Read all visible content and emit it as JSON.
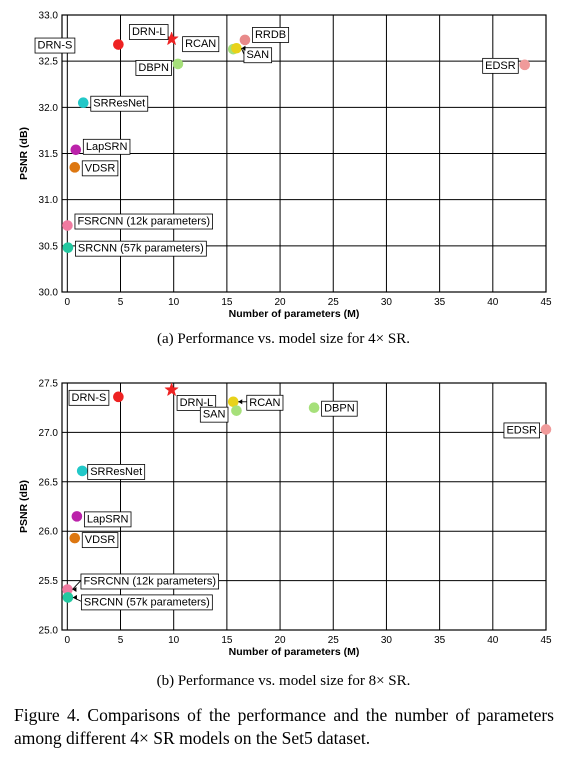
{
  "chart_data": [
    {
      "type": "scatter",
      "xlabel": "Number of parameters (M)",
      "ylabel": "PSNR (dB)",
      "xlim": [
        -0.5,
        45
      ],
      "ylim": [
        30.0,
        33.0
      ],
      "x_ticks": [
        "0",
        "5",
        "10",
        "15",
        "20",
        "25",
        "30",
        "35",
        "40",
        "45"
      ],
      "y_ticks": [
        "30.0",
        "30.5",
        "31.0",
        "31.5",
        "32.0",
        "32.5",
        "33.0"
      ],
      "grid": true,
      "points": [
        {
          "name": "DRN-S",
          "x": 4.8,
          "y": 32.68,
          "color": "#ee2222",
          "marker": "circle"
        },
        {
          "name": "DRN-L",
          "x": 9.8,
          "y": 32.74,
          "color": "#ee2222",
          "marker": "star"
        },
        {
          "name": "DBPN",
          "x": 10.4,
          "y": 32.47,
          "color": "#a6e07a",
          "marker": "circle"
        },
        {
          "name": "RCAN",
          "x": 15.6,
          "y": 32.63,
          "color": "#a6e07a",
          "marker": "circle"
        },
        {
          "name": "SAN",
          "x": 15.9,
          "y": 32.64,
          "color": "#e8d21a",
          "marker": "circle"
        },
        {
          "name": "RRDB",
          "x": 16.7,
          "y": 32.73,
          "color": "#e88a8a",
          "marker": "circle"
        },
        {
          "name": "EDSR",
          "x": 43.0,
          "y": 32.46,
          "color": "#f09a9a",
          "marker": "circle"
        },
        {
          "name": "SRResNet",
          "x": 1.5,
          "y": 32.05,
          "color": "#22c8c8",
          "marker": "circle"
        },
        {
          "name": "LapSRN",
          "x": 0.8,
          "y": 31.54,
          "color": "#bb22aa",
          "marker": "circle"
        },
        {
          "name": "VDSR",
          "x": 0.7,
          "y": 31.35,
          "color": "#dd7711",
          "marker": "circle"
        },
        {
          "name": "FSRCNN (12k parameters)",
          "x": 0.012,
          "y": 30.72,
          "color": "#f07aa0",
          "marker": "circle"
        },
        {
          "name": "SRCNN (57k parameters)",
          "x": 0.057,
          "y": 30.48,
          "color": "#22c8a0",
          "marker": "circle"
        }
      ]
    },
    {
      "type": "scatter",
      "xlabel": "Number of parameters (M)",
      "ylabel": "PSNR (dB)",
      "xlim": [
        -0.5,
        45
      ],
      "ylim": [
        25.0,
        27.5
      ],
      "x_ticks": [
        "0",
        "5",
        "10",
        "15",
        "20",
        "25",
        "30",
        "35",
        "40",
        "45"
      ],
      "y_ticks": [
        "25.0",
        "25.5",
        "26.0",
        "26.5",
        "27.0",
        "27.5"
      ],
      "grid": true,
      "points": [
        {
          "name": "DRN-S",
          "x": 4.8,
          "y": 27.36,
          "color": "#ee2222",
          "marker": "circle"
        },
        {
          "name": "DRN-L",
          "x": 9.8,
          "y": 27.43,
          "color": "#ee2222",
          "marker": "star"
        },
        {
          "name": "RCAN",
          "x": 15.6,
          "y": 27.31,
          "color": "#e8d21a",
          "marker": "circle"
        },
        {
          "name": "SAN",
          "x": 15.9,
          "y": 27.22,
          "color": "#a6e07a",
          "marker": "circle"
        },
        {
          "name": "DBPN",
          "x": 23.2,
          "y": 27.25,
          "color": "#a6e07a",
          "marker": "circle"
        },
        {
          "name": "EDSR",
          "x": 45.0,
          "y": 27.03,
          "color": "#f09a9a",
          "marker": "circle"
        },
        {
          "name": "SRResNet",
          "x": 1.4,
          "y": 26.61,
          "color": "#22c8c8",
          "marker": "circle"
        },
        {
          "name": "LapSRN",
          "x": 0.9,
          "y": 26.15,
          "color": "#bb22aa",
          "marker": "circle"
        },
        {
          "name": "VDSR",
          "x": 0.7,
          "y": 25.93,
          "color": "#dd7711",
          "marker": "circle"
        },
        {
          "name": "FSRCNN (12k parameters)",
          "x": 0.012,
          "y": 25.41,
          "color": "#f07aa0",
          "marker": "circle"
        },
        {
          "name": "SRCNN (57k parameters)",
          "x": 0.057,
          "y": 25.33,
          "color": "#22c8a0",
          "marker": "circle"
        }
      ]
    }
  ],
  "captions": {
    "a": "(a)  Performance vs. model size for 4× SR.",
    "b": "(b)  Performance vs. model size for 8× SR.",
    "figure": "Figure 4.  Comparisons of the performance and the number of parameters among different 4× SR models on the Set5 dataset."
  }
}
